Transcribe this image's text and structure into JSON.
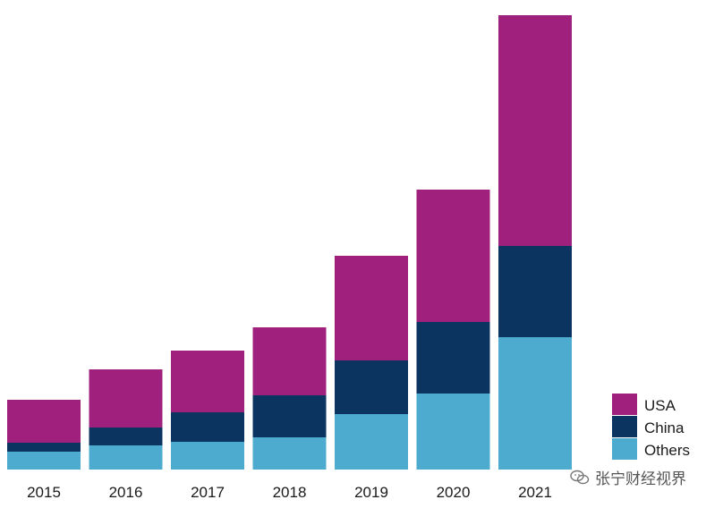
{
  "chart_data": {
    "type": "bar",
    "stacked": true,
    "title": "",
    "xlabel": "",
    "ylabel": "",
    "categories": [
      "2015",
      "2016",
      "2017",
      "2018",
      "2019",
      "2020",
      "2021"
    ],
    "series": [
      {
        "name": "Others",
        "color": "#4dabd0",
        "values": [
          20,
          27,
          31,
          36,
          62,
          85,
          148
        ]
      },
      {
        "name": "China",
        "color": "#0b3560",
        "values": [
          10,
          20,
          33,
          47,
          60,
          80,
          102
        ]
      },
      {
        "name": "USA",
        "color": "#a0207e",
        "values": [
          48,
          65,
          69,
          76,
          117,
          148,
          258
        ]
      }
    ],
    "ylim": [
      0,
      510
    ],
    "grid": false,
    "legend_position": "bottom-right",
    "legend_order": [
      "USA",
      "China",
      "Others"
    ]
  },
  "watermark": {
    "text": "张宁财经视界"
  }
}
